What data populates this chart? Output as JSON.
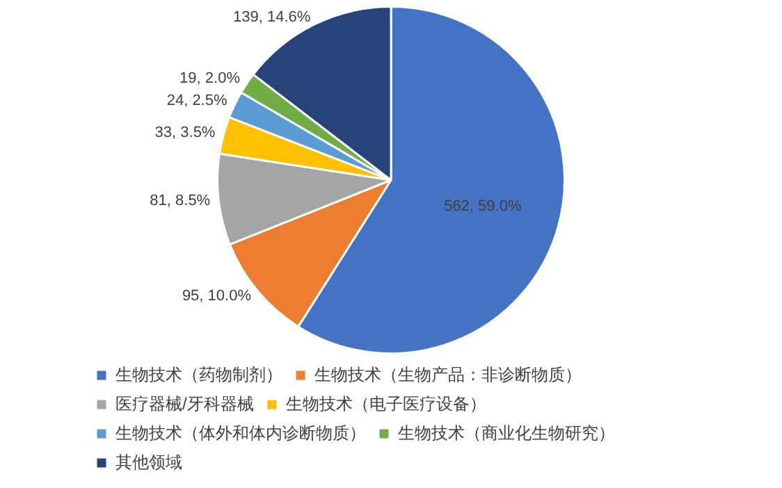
{
  "chart_data": {
    "type": "pie",
    "categories": [
      "生物技术（药物制剂）",
      "生物技术（生物产品：非诊断物质）",
      "医疗器械/牙科器械",
      "生物技术（电子医疗设备）",
      "生物技术（体外和体内诊断物质）",
      "生物技术（商业化生物研究）",
      "其他领域"
    ],
    "values": [
      562,
      95,
      81,
      33,
      24,
      19,
      139
    ],
    "colors": [
      "#4472c4",
      "#ed7d31",
      "#a5a5a5",
      "#ffc000",
      "#5b9bd5",
      "#70ad47",
      "#264478"
    ],
    "value_labels": [
      "562, 59.0%",
      "95, 10.0%",
      "81, 8.5%",
      "33, 3.5%",
      "24, 2.5%",
      "19, 2.0%",
      "139, 14.6%"
    ],
    "legend": "bottom"
  }
}
